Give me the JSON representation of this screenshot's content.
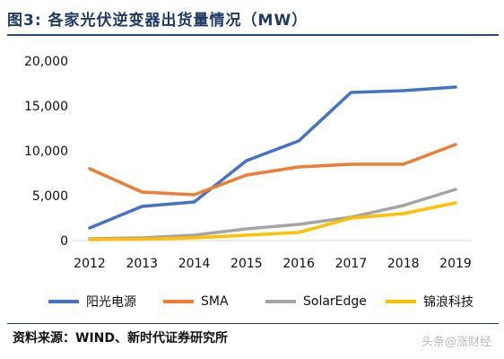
{
  "header": {
    "title": "图3:  各家光伏逆变器出货量情况（MW）"
  },
  "source": {
    "text": "资料来源：WIND、新时代证券研究所"
  },
  "watermark": {
    "text": "头条@涨财经"
  },
  "legend": {
    "items": [
      {
        "label": "阳光电源",
        "color": "#4472C4"
      },
      {
        "label": "SMA",
        "color": "#ED7D31"
      },
      {
        "label": "SolarEdge",
        "color": "#A5A5A5"
      },
      {
        "label": "锦浪科技",
        "color": "#FFC000"
      }
    ]
  },
  "chart_data": {
    "type": "line",
    "title": "各家光伏逆变器出货量情况（MW）",
    "xlabel": "",
    "ylabel": "",
    "categories": [
      "2012",
      "2013",
      "2014",
      "2015",
      "2016",
      "2017",
      "2018",
      "2019"
    ],
    "ylim": [
      0,
      20000
    ],
    "yticks": [
      0,
      5000,
      10000,
      15000,
      20000
    ],
    "ytick_labels": [
      "0",
      "5,000",
      "10,000",
      "15,000",
      "20,000"
    ],
    "grid": false,
    "legend_position": "bottom",
    "series": [
      {
        "name": "阳光电源",
        "color": "#4472C4",
        "values": [
          1400,
          3800,
          4300,
          8900,
          11100,
          16500,
          16700,
          17100
        ]
      },
      {
        "name": "SMA",
        "color": "#ED7D31",
        "values": [
          8000,
          5400,
          5100,
          7300,
          8200,
          8500,
          8500,
          10700
        ]
      },
      {
        "name": "SolarEdge",
        "color": "#A5A5A5",
        "values": [
          200,
          300,
          600,
          1300,
          1800,
          2600,
          3900,
          5700
        ]
      },
      {
        "name": "锦浪科技",
        "color": "#FFC000",
        "values": [
          100,
          150,
          300,
          600,
          900,
          2500,
          3000,
          4200
        ]
      }
    ]
  }
}
